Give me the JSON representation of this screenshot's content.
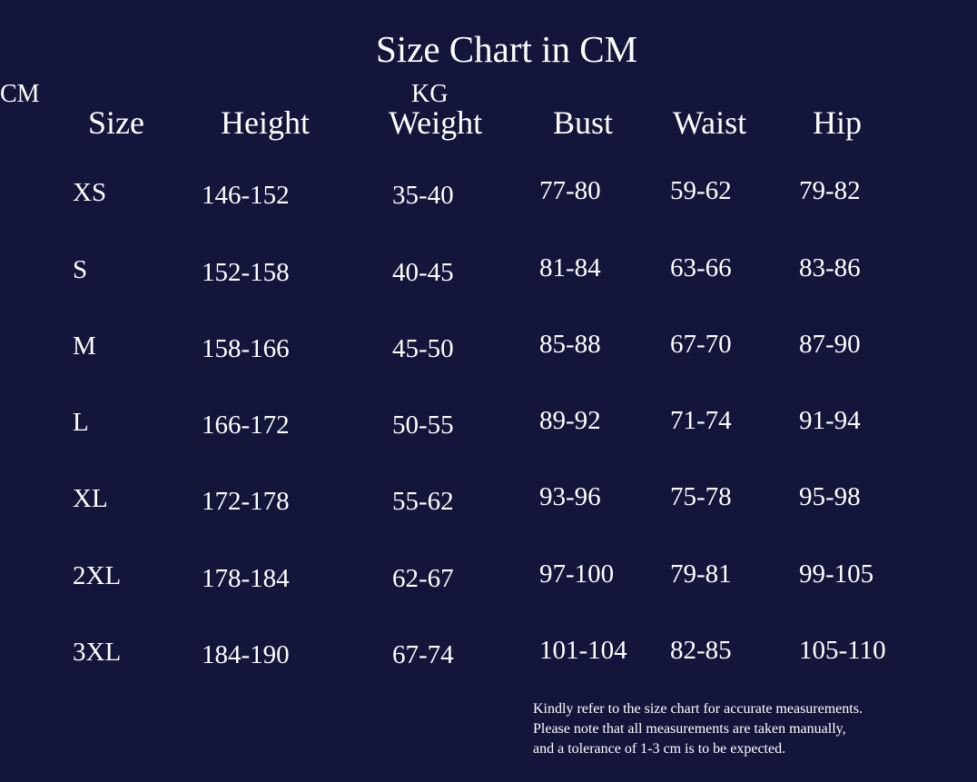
{
  "title": "Size Chart in CM",
  "headers": [
    {
      "label": "Size",
      "unit": ""
    },
    {
      "label": "Height",
      "unit": "CM"
    },
    {
      "label": "Weight",
      "unit": "KG"
    },
    {
      "label": "Bust",
      "unit": ""
    },
    {
      "label": "Waist",
      "unit": ""
    },
    {
      "label": "Hip",
      "unit": ""
    }
  ],
  "rows": [
    [
      "XS",
      "146-152",
      "35-40",
      "77-80",
      "59-62",
      "79-82"
    ],
    [
      "S",
      "152-158",
      "40-45",
      "81-84",
      "63-66",
      "83-86"
    ],
    [
      "M",
      "158-166",
      "45-50",
      "85-88",
      "67-70",
      "87-90"
    ],
    [
      "L",
      "166-172",
      "50-55",
      "89-92",
      "71-74",
      "91-94"
    ],
    [
      "XL",
      "172-178",
      "55-62",
      "93-96",
      "75-78",
      "95-98"
    ],
    [
      "2XL",
      "178-184",
      "62-67",
      "97-100",
      "79-81",
      "99-105"
    ],
    [
      "3XL",
      "184-190",
      "67-74",
      "101-104",
      "82-85",
      "105-110"
    ]
  ],
  "note": [
    "Kindly refer to the size chart for accurate measurements.",
    "Please note that all measurements are taken manually,",
    "and a tolerance of 1-3 cm is to be expected."
  ],
  "colors": {
    "background": "#13153a",
    "text": "#ffffff"
  }
}
